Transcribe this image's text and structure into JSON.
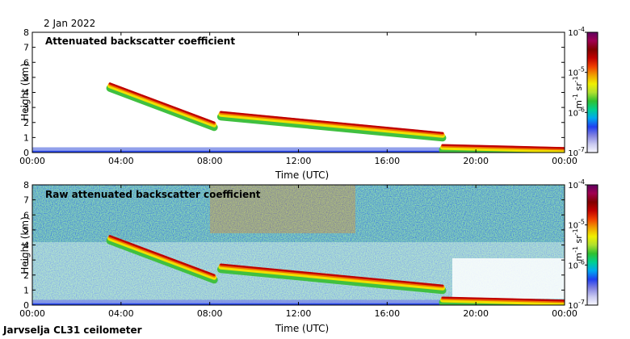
{
  "date_label": "2 Jan 2022",
  "footer_label": "Jarvselja CL31 ceilometer",
  "colorbar": {
    "ticks": [
      "10^-4",
      "10^-5",
      "10^-6",
      "10^-7"
    ],
    "exponents": [
      "-4",
      "-5",
      "-6",
      "-7"
    ],
    "unit_m": "m",
    "unit_sr": "sr",
    "unit_exp": "-1",
    "colors": [
      "#f8f8ff",
      "#c8c8f0",
      "#8080e0",
      "#2040f0",
      "#00a8f0",
      "#00d090",
      "#30c030",
      "#b0e030",
      "#f0f000",
      "#f0a000",
      "#f04000",
      "#c00000",
      "#800000",
      "#a00050",
      "#600060"
    ]
  },
  "chart_data": [
    {
      "type": "heatmap",
      "title": "Attenuated backscatter coefficient",
      "xlabel": "Time (UTC)",
      "ylabel": "Height (km)",
      "x_ticks": [
        "00:00",
        "04:00",
        "08:00",
        "12:00",
        "16:00",
        "20:00",
        "00:00"
      ],
      "x_range_hours": [
        0,
        24
      ],
      "y_ticks": [
        "0",
        "1",
        "2",
        "3",
        "4",
        "5",
        "6",
        "7",
        "8"
      ],
      "ylim": [
        0,
        8
      ],
      "color_scale": "log10, 1e-7 to 1e-4 m-1 sr-1",
      "layers": [
        {
          "name": "descending cloud layer",
          "t_start": 3.5,
          "h_start": 4.6,
          "t_end": 8.2,
          "h_end": 2.0
        },
        {
          "name": "main cloud layer",
          "t_start": 8.5,
          "h_start": 2.7,
          "t_end": 18.5,
          "h_end": 1.3
        },
        {
          "name": "low cloud layer",
          "t_start": 18.5,
          "h_start": 0.5,
          "t_end": 24,
          "h_end": 0.3
        }
      ]
    },
    {
      "type": "heatmap",
      "title": "Raw attenuated backscatter coefficient",
      "xlabel": "Time (UTC)",
      "ylabel": "Height (km)",
      "x_ticks": [
        "00:00",
        "04:00",
        "08:00",
        "12:00",
        "16:00",
        "20:00",
        "00:00"
      ],
      "x_range_hours": [
        0,
        24
      ],
      "y_ticks": [
        "0",
        "1",
        "2",
        "3",
        "4",
        "5",
        "6",
        "7",
        "8"
      ],
      "ylim": [
        0,
        8
      ],
      "color_scale": "log10, 1e-7 to 1e-4 m-1 sr-1",
      "layers": [
        {
          "name": "descending cloud layer",
          "t_start": 3.5,
          "h_start": 4.6,
          "t_end": 8.2,
          "h_end": 2.0
        },
        {
          "name": "main cloud layer",
          "t_start": 8.5,
          "h_start": 2.7,
          "t_end": 18.5,
          "h_end": 1.3
        },
        {
          "name": "low cloud layer",
          "t_start": 18.5,
          "h_start": 0.5,
          "t_end": 24,
          "h_end": 0.3
        }
      ]
    }
  ]
}
